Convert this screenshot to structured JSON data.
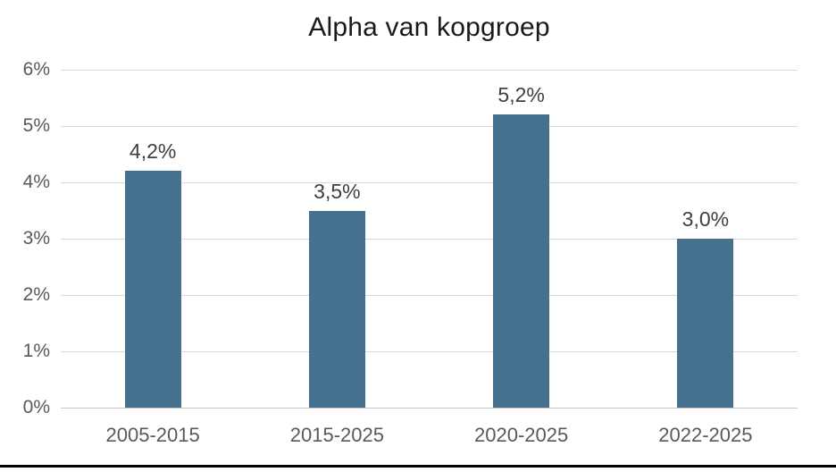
{
  "chart_data": {
    "type": "bar",
    "title": "Alpha van kopgroep",
    "categories": [
      "2005-2015",
      "2015-2025",
      "2020-2025",
      "2022-2025"
    ],
    "values": [
      4.2,
      3.5,
      5.2,
      3.0
    ],
    "data_labels": [
      "4,2%",
      "3,5%",
      "5,2%",
      "3,0%"
    ],
    "y_tick_labels": [
      "6%",
      "5%",
      "4%",
      "3%",
      "2%",
      "1%",
      "0%"
    ],
    "ylim": [
      0,
      6
    ],
    "xlabel": "",
    "ylabel": "",
    "grid": true,
    "legend": false
  },
  "colors": {
    "bar": "#45708e",
    "gridline": "#d9d9d9",
    "baseline": "#c6c6c6",
    "axis_text": "#595959",
    "value_text": "#3f3f3f",
    "title_text": "#1a1a1a",
    "background": "#ffffff",
    "bottom_border": "#000000"
  }
}
